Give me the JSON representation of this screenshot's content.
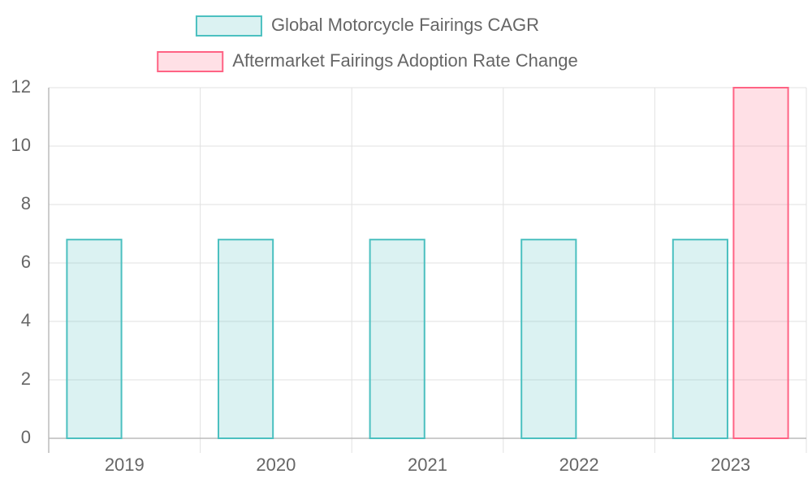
{
  "chart_data": {
    "type": "bar",
    "categories": [
      "2019",
      "2020",
      "2021",
      "2022",
      "2023"
    ],
    "series": [
      {
        "name": "Global Motorcycle Fairings CAGR",
        "color": "#4bc0c0",
        "fill": "rgba(75,192,192,0.2)",
        "values": [
          6.8,
          6.8,
          6.8,
          6.8,
          6.8
        ]
      },
      {
        "name": "Aftermarket Fairings Adoption Rate Change",
        "color": "#ff6384",
        "fill": "rgba(255,99,132,0.2)",
        "values": [
          null,
          null,
          null,
          null,
          12
        ]
      }
    ],
    "ylim": [
      0,
      12
    ],
    "yticks": [
      0,
      2,
      4,
      6,
      8,
      10,
      12
    ],
    "grid": true
  }
}
